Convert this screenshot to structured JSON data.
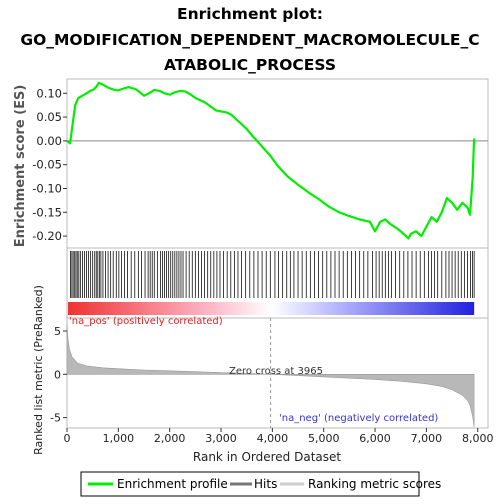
{
  "chart_data": {
    "type": "line",
    "title": [
      "Enrichment plot:",
      "GO_MODIFICATION_DEPENDENT_MACROMOLECULE_C",
      "ATABOLIC_PROCESS"
    ],
    "xlabel": "Rank in Ordered Dataset",
    "xlim": [
      0,
      8200
    ],
    "x_ticks": [
      0,
      1000,
      2000,
      3000,
      4000,
      5000,
      6000,
      7000,
      8000
    ],
    "x_tick_labels": [
      "0",
      "1,000",
      "2,000",
      "3,000",
      "4,000",
      "5,000",
      "6,000",
      "7,000",
      "8,000"
    ],
    "es_panel": {
      "ylabel": "Enrichment score (ES)",
      "ylim": [
        -0.225,
        0.13
      ],
      "y_ticks": [
        0.1,
        0.05,
        0.0,
        -0.05,
        -0.1,
        -0.15,
        -0.2
      ],
      "y_tick_labels": [
        "0.10",
        "0.05",
        "0.00",
        "-0.05",
        "-0.10",
        "-0.15",
        "-0.20"
      ],
      "series": [
        {
          "name": "Enrichment profile",
          "color": "#00ee00",
          "x": [
            0,
            60,
            110,
            160,
            220,
            300,
            380,
            450,
            520,
            580,
            620,
            700,
            800,
            900,
            1000,
            1100,
            1200,
            1350,
            1500,
            1600,
            1700,
            1800,
            1900,
            2000,
            2100,
            2200,
            2300,
            2400,
            2500,
            2600,
            2700,
            2800,
            2900,
            3000,
            3100,
            3200,
            3300,
            3400,
            3500,
            3600,
            3700,
            3800,
            3965,
            4100,
            4300,
            4500,
            4700,
            4900,
            5100,
            5300,
            5500,
            5700,
            5900,
            6000,
            6100,
            6200,
            6300,
            6400,
            6500,
            6600,
            6650,
            6700,
            6800,
            6900,
            7000,
            7100,
            7200,
            7300,
            7400,
            7500,
            7600,
            7700,
            7800,
            7850,
            7900,
            7930
          ],
          "y": [
            0.0,
            -0.005,
            0.035,
            0.075,
            0.09,
            0.095,
            0.1,
            0.105,
            0.108,
            0.115,
            0.122,
            0.118,
            0.112,
            0.108,
            0.106,
            0.11,
            0.113,
            0.108,
            0.095,
            0.1,
            0.107,
            0.105,
            0.1,
            0.097,
            0.102,
            0.105,
            0.104,
            0.098,
            0.09,
            0.085,
            0.08,
            0.072,
            0.064,
            0.062,
            0.06,
            0.055,
            0.045,
            0.035,
            0.025,
            0.012,
            0.0,
            -0.012,
            -0.032,
            -0.052,
            -0.075,
            -0.092,
            -0.108,
            -0.122,
            -0.138,
            -0.15,
            -0.158,
            -0.165,
            -0.17,
            -0.19,
            -0.17,
            -0.165,
            -0.175,
            -0.182,
            -0.19,
            -0.2,
            -0.205,
            -0.195,
            -0.19,
            -0.2,
            -0.18,
            -0.16,
            -0.17,
            -0.15,
            -0.12,
            -0.13,
            -0.145,
            -0.13,
            -0.14,
            -0.155,
            -0.08,
            0.005
          ]
        }
      ]
    },
    "hits_panel": {
      "series_name": "Hits",
      "hit_ranks": [
        70,
        95,
        120,
        150,
        175,
        200,
        230,
        260,
        300,
        340,
        380,
        420,
        460,
        500,
        540,
        570,
        600,
        630,
        660,
        700,
        750,
        800,
        850,
        900,
        960,
        1010,
        1060,
        1120,
        1180,
        1250,
        1320,
        1390,
        1450,
        1520,
        1580,
        1620,
        1660,
        1700,
        1760,
        1820,
        1860,
        1900,
        1940,
        1980,
        2020,
        2060,
        2100,
        2140,
        2180,
        2220,
        2260,
        2320,
        2380,
        2440,
        2500,
        2560,
        2620,
        2680,
        2740,
        2800,
        2860,
        2920,
        2980,
        3050,
        3120,
        3190,
        3260,
        3330,
        3400,
        3480,
        3560,
        3640,
        3720,
        3800,
        3880,
        3960,
        4050,
        4120,
        4200,
        4280,
        4350,
        4420,
        4500,
        4580,
        4660,
        4740,
        4820,
        4900,
        4980,
        5060,
        5140,
        5220,
        5300,
        5380,
        5460,
        5540,
        5620,
        5700,
        5780,
        5860,
        5950,
        6020,
        6080,
        6140,
        6200,
        6260,
        6320,
        6400,
        6480,
        6560,
        6640,
        6720,
        6800,
        6880,
        6960,
        7040,
        7100,
        7160,
        7220,
        7300,
        7380,
        7440,
        7500,
        7560,
        7620,
        7680,
        7740,
        7800,
        7860,
        7900,
        7930
      ],
      "gradient_colors": [
        "#ee3333",
        "#ffbbcc",
        "#ffffff",
        "#bbbbff",
        "#2222dd"
      ]
    },
    "ranked_panel": {
      "ylabel": "Ranked list metric (PreRanked)",
      "series_name": "Ranking metric scores",
      "ylim": [
        -6.2,
        6.5
      ],
      "y_ticks": [
        5,
        0,
        -5
      ],
      "y_tick_labels": [
        "5",
        "0",
        "-5"
      ],
      "x": [
        0,
        20,
        50,
        100,
        200,
        400,
        700,
        1000,
        1500,
        2000,
        2500,
        3000,
        3500,
        3965,
        4500,
        5000,
        5500,
        6000,
        6500,
        7000,
        7300,
        7500,
        7700,
        7800,
        7850,
        7900,
        7930
      ],
      "y": [
        5.8,
        4.0,
        2.8,
        2.0,
        1.3,
        0.95,
        0.75,
        0.65,
        0.5,
        0.4,
        0.3,
        0.2,
        0.1,
        0.0,
        -0.15,
        -0.3,
        -0.45,
        -0.6,
        -0.8,
        -1.1,
        -1.4,
        -1.8,
        -2.4,
        -3.0,
        -3.6,
        -4.8,
        -6.1
      ]
    },
    "annotations": {
      "zero_cross": "Zero cross at 3965",
      "zero_cross_rank": 3965,
      "pos_label": "'na_pos' (positively correlated)",
      "neg_label": "'na_neg' (negatively correlated)"
    },
    "legend": {
      "placement": "bottom",
      "items": [
        {
          "label": "Enrichment profile",
          "color": "#00ee00"
        },
        {
          "label": "Hits",
          "color": "#777777"
        },
        {
          "label": "Ranking metric scores",
          "color": "#cccccc"
        }
      ]
    }
  }
}
